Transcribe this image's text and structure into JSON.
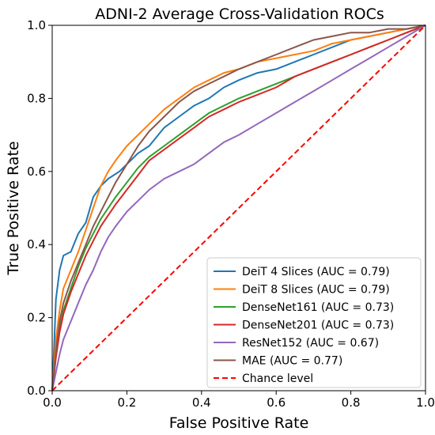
{
  "chart_data": {
    "type": "line",
    "title": "ADNI-2 Average Cross-Validation ROCs",
    "xlabel": "False Positive Rate",
    "ylabel": "True Positive Rate",
    "xlim": [
      0.0,
      1.0
    ],
    "ylim": [
      0.0,
      1.0
    ],
    "xticks": [
      "0.0",
      "0.2",
      "0.4",
      "0.6",
      "0.8",
      "1.0"
    ],
    "yticks": [
      "0.0",
      "0.2",
      "0.4",
      "0.6",
      "0.8",
      "1.0"
    ],
    "grid": false,
    "legend_position": "bottom-right",
    "series": [
      {
        "name": "DeiT 4 Slices (AUC = 0.79)",
        "color": "#1f77b4",
        "style": "solid",
        "x": [
          0.0,
          0.005,
          0.01,
          0.02,
          0.03,
          0.05,
          0.07,
          0.09,
          0.11,
          0.13,
          0.15,
          0.18,
          0.2,
          0.23,
          0.26,
          0.3,
          0.34,
          0.38,
          0.42,
          0.46,
          0.5,
          0.55,
          0.6,
          0.65,
          0.7,
          0.75,
          0.8,
          0.85,
          0.9,
          0.95,
          1.0
        ],
        "y": [
          0.0,
          0.12,
          0.25,
          0.33,
          0.37,
          0.38,
          0.43,
          0.46,
          0.53,
          0.56,
          0.58,
          0.6,
          0.62,
          0.65,
          0.67,
          0.72,
          0.75,
          0.78,
          0.8,
          0.83,
          0.85,
          0.87,
          0.88,
          0.9,
          0.92,
          0.94,
          0.96,
          0.97,
          0.98,
          0.99,
          1.0
        ]
      },
      {
        "name": "DeiT 8 Slices (AUC = 0.79)",
        "color": "#ff7f0e",
        "style": "solid",
        "x": [
          0.0,
          0.01,
          0.02,
          0.03,
          0.05,
          0.07,
          0.09,
          0.11,
          0.13,
          0.15,
          0.17,
          0.2,
          0.23,
          0.26,
          0.3,
          0.34,
          0.38,
          0.42,
          0.46,
          0.5,
          0.55,
          0.6,
          0.65,
          0.7,
          0.75,
          0.8,
          0.85,
          0.9,
          0.95,
          1.0
        ],
        "y": [
          0.0,
          0.14,
          0.22,
          0.28,
          0.33,
          0.38,
          0.44,
          0.5,
          0.56,
          0.6,
          0.63,
          0.67,
          0.7,
          0.73,
          0.77,
          0.8,
          0.83,
          0.85,
          0.87,
          0.88,
          0.9,
          0.91,
          0.92,
          0.93,
          0.95,
          0.96,
          0.97,
          0.98,
          0.99,
          1.0
        ]
      },
      {
        "name": "DenseNet161 (AUC = 0.73)",
        "color": "#2ca02c",
        "style": "solid",
        "x": [
          0.0,
          0.01,
          0.02,
          0.03,
          0.05,
          0.07,
          0.09,
          0.11,
          0.13,
          0.15,
          0.17,
          0.2,
          0.23,
          0.26,
          0.3,
          0.34,
          0.38,
          0.42,
          0.46,
          0.5,
          0.55,
          0.6,
          0.65,
          0.7,
          0.75,
          0.8,
          0.85,
          0.9,
          0.95,
          1.0
        ],
        "y": [
          0.0,
          0.1,
          0.17,
          0.22,
          0.28,
          0.34,
          0.39,
          0.43,
          0.47,
          0.5,
          0.53,
          0.57,
          0.61,
          0.64,
          0.67,
          0.7,
          0.73,
          0.76,
          0.78,
          0.8,
          0.82,
          0.84,
          0.86,
          0.88,
          0.9,
          0.92,
          0.94,
          0.96,
          0.98,
          1.0
        ]
      },
      {
        "name": "DenseNet201 (AUC = 0.73)",
        "color": "#d62728",
        "style": "solid",
        "x": [
          0.0,
          0.01,
          0.02,
          0.03,
          0.05,
          0.07,
          0.09,
          0.11,
          0.13,
          0.15,
          0.17,
          0.2,
          0.23,
          0.26,
          0.3,
          0.34,
          0.38,
          0.42,
          0.46,
          0.5,
          0.55,
          0.6,
          0.65,
          0.7,
          0.75,
          0.8,
          0.85,
          0.9,
          0.95,
          1.0
        ],
        "y": [
          0.0,
          0.09,
          0.16,
          0.21,
          0.27,
          0.32,
          0.37,
          0.41,
          0.45,
          0.48,
          0.51,
          0.55,
          0.59,
          0.63,
          0.66,
          0.69,
          0.72,
          0.75,
          0.77,
          0.79,
          0.81,
          0.83,
          0.86,
          0.88,
          0.9,
          0.92,
          0.94,
          0.96,
          0.98,
          1.0
        ]
      },
      {
        "name": "ResNet152 (AUC = 0.67)",
        "color": "#9467bd",
        "style": "solid",
        "x": [
          0.0,
          0.01,
          0.02,
          0.03,
          0.05,
          0.07,
          0.09,
          0.11,
          0.13,
          0.15,
          0.17,
          0.2,
          0.23,
          0.26,
          0.3,
          0.34,
          0.38,
          0.42,
          0.46,
          0.5,
          0.55,
          0.6,
          0.65,
          0.7,
          0.75,
          0.8,
          0.85,
          0.9,
          0.95,
          1.0
        ],
        "y": [
          0.0,
          0.05,
          0.1,
          0.14,
          0.19,
          0.24,
          0.29,
          0.33,
          0.38,
          0.42,
          0.45,
          0.49,
          0.52,
          0.55,
          0.58,
          0.6,
          0.62,
          0.65,
          0.68,
          0.7,
          0.73,
          0.76,
          0.79,
          0.82,
          0.85,
          0.88,
          0.91,
          0.94,
          0.97,
          1.0
        ]
      },
      {
        "name": "MAE (AUC = 0.77)",
        "color": "#8c564b",
        "style": "solid",
        "x": [
          0.0,
          0.01,
          0.02,
          0.03,
          0.05,
          0.07,
          0.09,
          0.11,
          0.13,
          0.15,
          0.17,
          0.2,
          0.23,
          0.26,
          0.3,
          0.34,
          0.38,
          0.42,
          0.46,
          0.5,
          0.55,
          0.6,
          0.65,
          0.7,
          0.75,
          0.8,
          0.85,
          0.9,
          0.95,
          1.0
        ],
        "y": [
          0.0,
          0.11,
          0.19,
          0.24,
          0.3,
          0.35,
          0.4,
          0.45,
          0.49,
          0.53,
          0.57,
          0.62,
          0.67,
          0.71,
          0.75,
          0.79,
          0.82,
          0.84,
          0.86,
          0.88,
          0.9,
          0.92,
          0.94,
          0.96,
          0.97,
          0.98,
          0.98,
          0.99,
          0.99,
          1.0
        ]
      },
      {
        "name": "Chance level",
        "color": "#ff0000",
        "style": "dashed",
        "x": [
          0.0,
          1.0
        ],
        "y": [
          0.0,
          1.0
        ]
      }
    ]
  }
}
